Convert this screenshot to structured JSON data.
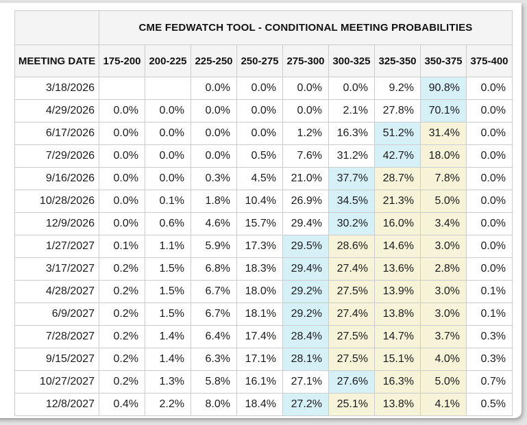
{
  "table": {
    "title": "CME FEDWATCH TOOL - CONDITIONAL MEETING PROBABILITIES",
    "date_column_header": "MEETING DATE",
    "rate_range_headers": [
      "175-200",
      "200-225",
      "225-250",
      "250-275",
      "275-300",
      "300-325",
      "325-350",
      "350-375",
      "375-400"
    ],
    "rows": [
      {
        "date": "3/18/2026",
        "values": [
          "",
          "",
          "0.0%",
          "0.0%",
          "0.0%",
          "0.0%",
          "9.2%",
          "90.8%",
          "0.0%"
        ],
        "highlights": [
          null,
          null,
          null,
          null,
          null,
          null,
          null,
          "blue",
          null
        ]
      },
      {
        "date": "4/29/2026",
        "values": [
          "0.0%",
          "0.0%",
          "0.0%",
          "0.0%",
          "0.0%",
          "2.1%",
          "27.8%",
          "70.1%",
          "0.0%"
        ],
        "highlights": [
          null,
          null,
          null,
          null,
          null,
          null,
          null,
          "blue",
          null
        ]
      },
      {
        "date": "6/17/2026",
        "values": [
          "0.0%",
          "0.0%",
          "0.0%",
          "0.0%",
          "1.2%",
          "16.3%",
          "51.2%",
          "31.4%",
          "0.0%"
        ],
        "highlights": [
          null,
          null,
          null,
          null,
          null,
          null,
          "blue",
          "yellow",
          null
        ]
      },
      {
        "date": "7/29/2026",
        "values": [
          "0.0%",
          "0.0%",
          "0.0%",
          "0.5%",
          "7.6%",
          "31.2%",
          "42.7%",
          "18.0%",
          "0.0%"
        ],
        "highlights": [
          null,
          null,
          null,
          null,
          null,
          null,
          "blue",
          "yellow",
          null
        ]
      },
      {
        "date": "9/16/2026",
        "values": [
          "0.0%",
          "0.0%",
          "0.3%",
          "4.5%",
          "21.0%",
          "37.7%",
          "28.7%",
          "7.8%",
          "0.0%"
        ],
        "highlights": [
          null,
          null,
          null,
          null,
          null,
          "blue",
          "yellow",
          "yellow",
          null
        ]
      },
      {
        "date": "10/28/2026",
        "values": [
          "0.0%",
          "0.1%",
          "1.8%",
          "10.4%",
          "26.9%",
          "34.5%",
          "21.3%",
          "5.0%",
          "0.0%"
        ],
        "highlights": [
          null,
          null,
          null,
          null,
          null,
          "blue",
          "yellow",
          "yellow",
          null
        ]
      },
      {
        "date": "12/9/2026",
        "values": [
          "0.0%",
          "0.6%",
          "4.6%",
          "15.7%",
          "29.4%",
          "30.2%",
          "16.0%",
          "3.4%",
          "0.0%"
        ],
        "highlights": [
          null,
          null,
          null,
          null,
          null,
          "blue",
          "yellow",
          "yellow",
          null
        ]
      },
      {
        "date": "1/27/2027",
        "values": [
          "0.1%",
          "1.1%",
          "5.9%",
          "17.3%",
          "29.5%",
          "28.6%",
          "14.6%",
          "3.0%",
          "0.0%"
        ],
        "highlights": [
          null,
          null,
          null,
          null,
          "blue",
          "yellow",
          "yellow",
          "yellow",
          null
        ]
      },
      {
        "date": "3/17/2027",
        "values": [
          "0.2%",
          "1.5%",
          "6.8%",
          "18.3%",
          "29.4%",
          "27.4%",
          "13.6%",
          "2.8%",
          "0.0%"
        ],
        "highlights": [
          null,
          null,
          null,
          null,
          "blue",
          "yellow",
          "yellow",
          "yellow",
          null
        ]
      },
      {
        "date": "4/28/2027",
        "values": [
          "0.2%",
          "1.5%",
          "6.7%",
          "18.0%",
          "29.2%",
          "27.5%",
          "13.9%",
          "3.0%",
          "0.1%"
        ],
        "highlights": [
          null,
          null,
          null,
          null,
          "blue",
          "yellow",
          "yellow",
          "yellow",
          null
        ]
      },
      {
        "date": "6/9/2027",
        "values": [
          "0.2%",
          "1.5%",
          "6.7%",
          "18.1%",
          "29.2%",
          "27.4%",
          "13.8%",
          "3.0%",
          "0.1%"
        ],
        "highlights": [
          null,
          null,
          null,
          null,
          "blue",
          "yellow",
          "yellow",
          "yellow",
          null
        ]
      },
      {
        "date": "7/28/2027",
        "values": [
          "0.2%",
          "1.4%",
          "6.4%",
          "17.4%",
          "28.4%",
          "27.5%",
          "14.7%",
          "3.7%",
          "0.3%"
        ],
        "highlights": [
          null,
          null,
          null,
          null,
          "blue",
          "yellow",
          "yellow",
          "yellow",
          null
        ]
      },
      {
        "date": "9/15/2027",
        "values": [
          "0.2%",
          "1.4%",
          "6.3%",
          "17.1%",
          "28.1%",
          "27.5%",
          "15.1%",
          "4.0%",
          "0.3%"
        ],
        "highlights": [
          null,
          null,
          null,
          null,
          "blue",
          "yellow",
          "yellow",
          "yellow",
          null
        ]
      },
      {
        "date": "10/27/2027",
        "values": [
          "0.2%",
          "1.3%",
          "5.8%",
          "16.1%",
          "27.1%",
          "27.6%",
          "16.3%",
          "5.0%",
          "0.7%"
        ],
        "highlights": [
          null,
          null,
          null,
          null,
          null,
          "blue",
          "yellow",
          "yellow",
          null
        ]
      },
      {
        "date": "12/8/2027",
        "values": [
          "0.4%",
          "2.2%",
          "8.0%",
          "18.4%",
          "27.2%",
          "25.1%",
          "13.8%",
          "4.1%",
          "0.5%"
        ],
        "highlights": [
          null,
          null,
          null,
          null,
          "blue",
          "yellow",
          "yellow",
          "yellow",
          null
        ]
      }
    ]
  },
  "colors": {
    "highlight_blue": "#d6f0f7",
    "highlight_yellow": "#f6f3d9",
    "header_bg": "#f4f4f4",
    "border": "#cccccc"
  }
}
